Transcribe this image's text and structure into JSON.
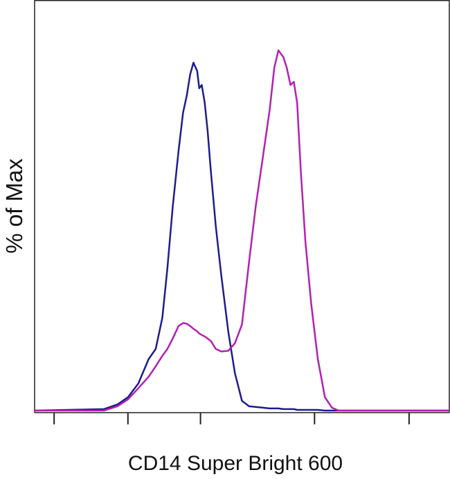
{
  "chart_data": {
    "type": "line",
    "x_label": "CD14 Super Bright 600",
    "y_label": "% of Max",
    "x": [
      0,
      16.7,
      20,
      22.5,
      25,
      27.5,
      29.2,
      30.8,
      32,
      33.3,
      34.7,
      35.8,
      36.7,
      37.5,
      38.3,
      39.2,
      39.7,
      40.3,
      41,
      41.7,
      42.5,
      43.7,
      45,
      46.7,
      48.3,
      50,
      51.7,
      53.3,
      55,
      56.7,
      57.8,
      58.8,
      60,
      60.8,
      61.7,
      62.5,
      63.3,
      64.2,
      65.3,
      66.7,
      68.3,
      70,
      71.7,
      73.3,
      78.3,
      100
    ],
    "series": [
      {
        "color": "#1c1c8e",
        "values": [
          0,
          0.4,
          1.7,
          3.7,
          7.5,
          14.3,
          17.1,
          25.8,
          39.3,
          56.6,
          72.1,
          82.7,
          87.5,
          93.3,
          96.6,
          94.3,
          89.5,
          90.4,
          85.6,
          77.9,
          66.4,
          51.0,
          37.6,
          22.0,
          10.4,
          2.7,
          1.2,
          1.0,
          0.8,
          0.6,
          0.6,
          0.6,
          0.4,
          0.4,
          0.4,
          0.4,
          0.2,
          0.2,
          0.2,
          0.2,
          0.2,
          0,
          0,
          0,
          0,
          0
        ]
      },
      {
        "color": "#b31fb1",
        "values": [
          0,
          0,
          1.2,
          3.1,
          6.2,
          9.4,
          12.3,
          15.2,
          17.1,
          20.0,
          23.5,
          24.3,
          24.1,
          23.5,
          22.7,
          22.0,
          21.4,
          21.0,
          20.6,
          20.0,
          19.3,
          17.1,
          16.4,
          16.6,
          18.7,
          23.9,
          41.2,
          56.6,
          70.1,
          83.6,
          95.2,
          100,
          98.1,
          95.2,
          90.4,
          91.3,
          85.5,
          66.2,
          47.0,
          29.7,
          14.3,
          3.7,
          0.8,
          0,
          0,
          0
        ]
      }
    ],
    "xlim": [
      0,
      100
    ],
    "ylim": [
      0,
      114
    ],
    "xticks": [
      4.7,
      22.5,
      40,
      67.5,
      90.3
    ]
  }
}
